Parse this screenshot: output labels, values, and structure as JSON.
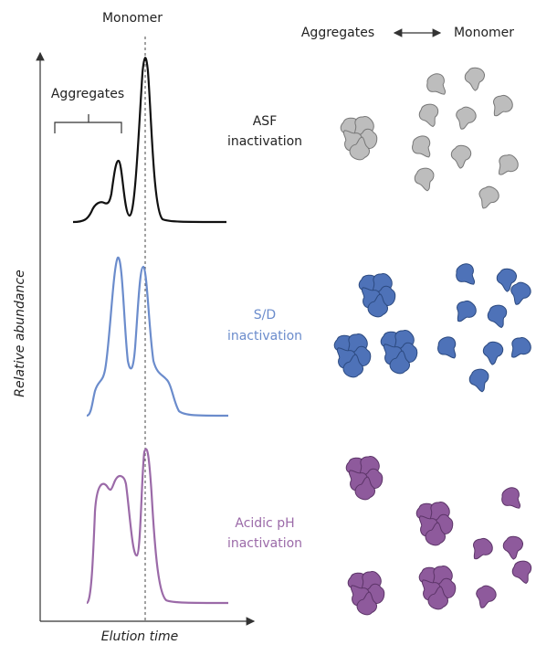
{
  "header": {
    "peak_label": "Monomer",
    "scale_left": "Aggregates",
    "scale_right": "Monomer"
  },
  "chromatogram": {
    "y_axis": "Relative abundance",
    "x_axis": "Elution time",
    "bracket_label": "Aggregates"
  },
  "panels": [
    {
      "label": [
        "ASF",
        "inactivation"
      ]
    },
    {
      "label": [
        "S/D",
        "inactivation"
      ]
    },
    {
      "label": [
        "Acidic pH",
        "inactivation"
      ]
    }
  ]
}
